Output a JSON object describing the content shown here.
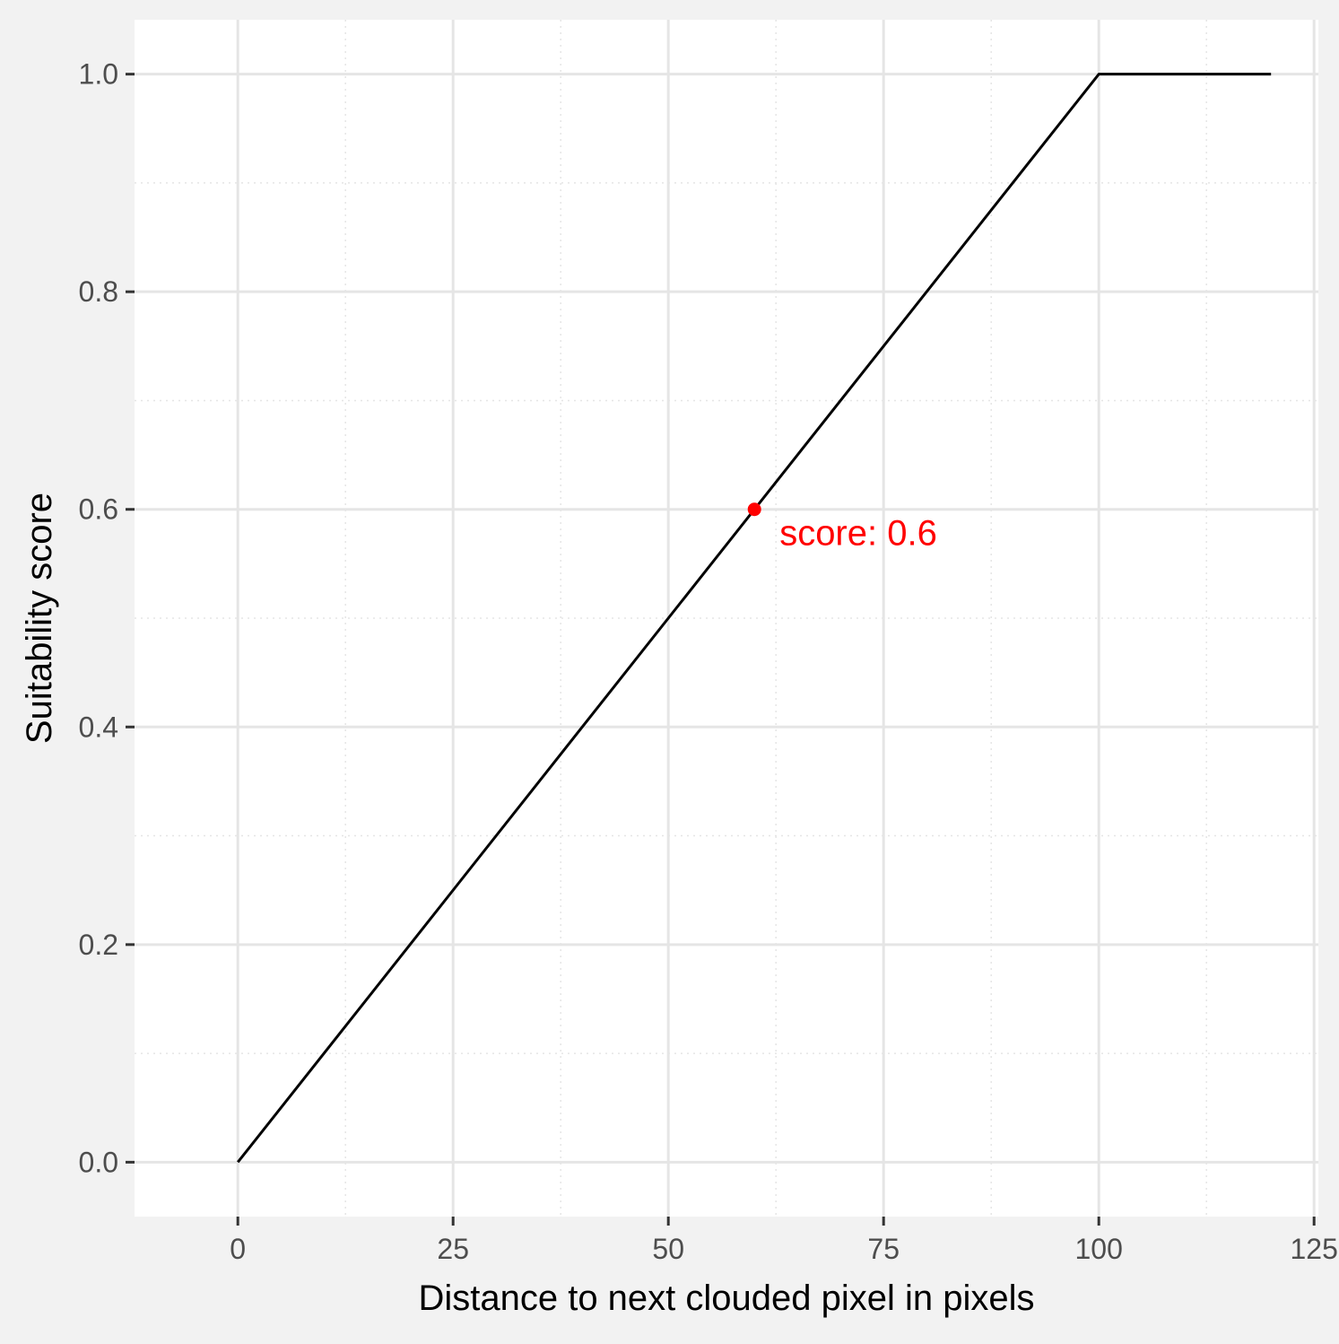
{
  "chart_data": {
    "type": "line",
    "title": "",
    "xlabel": "Distance to next clouded pixel in pixels",
    "ylabel": "Suitability score",
    "xlim": [
      -12,
      125.5
    ],
    "ylim": [
      -0.05,
      1.05
    ],
    "x_ticks": [
      0,
      25,
      50,
      75,
      100,
      125
    ],
    "x_tick_labels": [
      "0",
      "25",
      "50",
      "75",
      "100",
      "125"
    ],
    "y_ticks": [
      0.0,
      0.2,
      0.4,
      0.6,
      0.8,
      1.0
    ],
    "y_tick_labels": [
      "0.0",
      "0.2",
      "0.4",
      "0.6",
      "0.8",
      "1.0"
    ],
    "x_minor_ticks": [
      12.5,
      37.5,
      62.5,
      87.5,
      112.5
    ],
    "y_minor_ticks": [
      0.1,
      0.3,
      0.5,
      0.7,
      0.9
    ],
    "grid": true,
    "series": [
      {
        "x": [
          0,
          100,
          120
        ],
        "y": [
          0.0,
          1.0,
          1.0
        ],
        "color": "#000000"
      }
    ],
    "highlight_point": {
      "x": 60,
      "y": 0.6,
      "color": "#ff0000"
    },
    "annotation": {
      "text": "score: 0.6",
      "x": 60,
      "y": 0.6,
      "color": "#ff0000"
    },
    "colors": {
      "background": "#f2f2f2",
      "panel": "#ffffff",
      "grid": "#e5e5e5",
      "tick_text": "#4d4d4d",
      "tick_mark": "#333333",
      "axis_title": "#000000"
    }
  }
}
